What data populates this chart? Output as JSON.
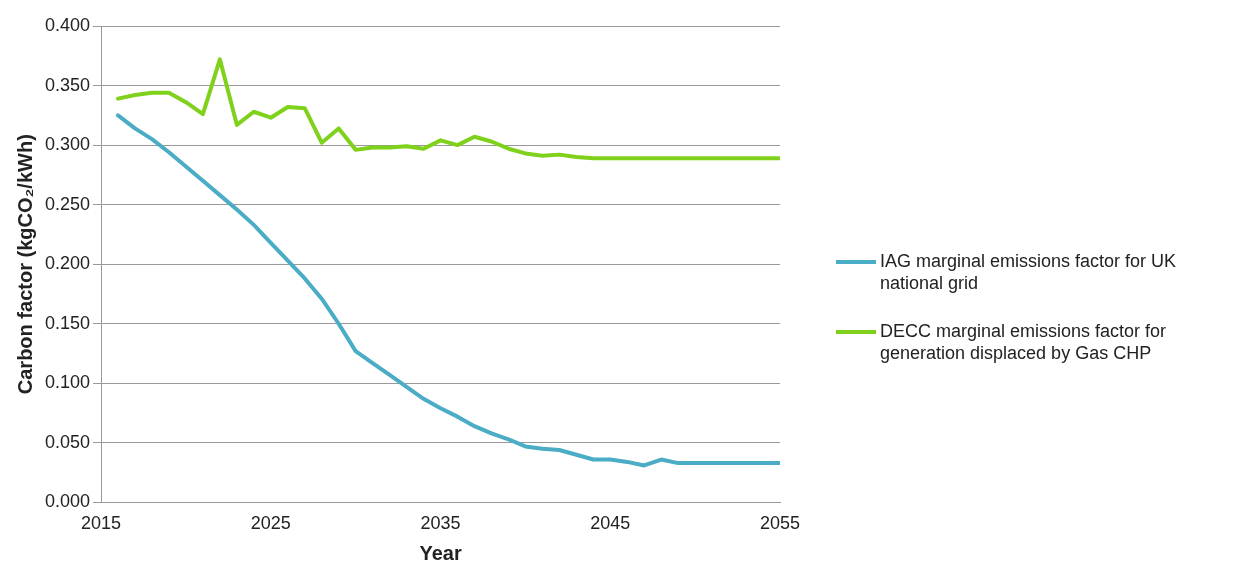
{
  "chart_data": {
    "type": "line",
    "xlabel": "Year",
    "ylabel": "Carbon factor (kgCO₂/kWh)",
    "x": [
      2016,
      2017,
      2018,
      2019,
      2020,
      2021,
      2022,
      2023,
      2024,
      2025,
      2026,
      2027,
      2028,
      2029,
      2030,
      2031,
      2032,
      2033,
      2034,
      2035,
      2036,
      2037,
      2038,
      2039,
      2040,
      2041,
      2042,
      2043,
      2044,
      2045,
      2046,
      2047,
      2048,
      2049,
      2050,
      2051,
      2052,
      2053,
      2054,
      2055
    ],
    "series": [
      {
        "name": "IAG marginal emissions factor for UK national grid",
        "color": "#4bacc6",
        "values": [
          0.325,
          0.314,
          0.305,
          0.294,
          0.282,
          0.27,
          0.258,
          0.246,
          0.233,
          0.218,
          0.203,
          0.188,
          0.171,
          0.15,
          0.127,
          0.117,
          0.107,
          0.097,
          0.087,
          0.079,
          0.072,
          0.064,
          0.058,
          0.053,
          0.047,
          0.045,
          0.044,
          0.04,
          0.036,
          0.036,
          0.034,
          0.031,
          0.036,
          0.033,
          0.033,
          0.033,
          0.033,
          0.033,
          0.033,
          0.033
        ]
      },
      {
        "name": "DECC marginal emissions factor for generation displaced by Gas CHP",
        "color": "#7fd11b",
        "values": [
          0.339,
          0.342,
          0.344,
          0.344,
          0.336,
          0.326,
          0.372,
          0.317,
          0.328,
          0.323,
          0.332,
          0.331,
          0.302,
          0.314,
          0.296,
          0.298,
          0.298,
          0.299,
          0.297,
          0.304,
          0.3,
          0.307,
          0.303,
          0.297,
          0.293,
          0.291,
          0.292,
          0.29,
          0.289,
          0.289,
          0.289,
          0.289,
          0.289,
          0.289,
          0.289,
          0.289,
          0.289,
          0.289,
          0.289,
          0.289
        ]
      }
    ],
    "xlim": [
      2015,
      2055
    ],
    "xticks": [
      2015,
      2025,
      2035,
      2045,
      2055
    ],
    "ylim": [
      0,
      0.4
    ],
    "yticks": [
      {
        "value": 0,
        "label": "0.000"
      },
      {
        "value": 0.05,
        "label": "0.050"
      },
      {
        "value": 0.1,
        "label": "0.100"
      },
      {
        "value": 0.15,
        "label": "0.150"
      },
      {
        "value": 0.2,
        "label": "0.200"
      },
      {
        "value": 0.25,
        "label": "0.250"
      },
      {
        "value": 0.3,
        "label": "0.300"
      },
      {
        "value": 0.35,
        "label": "0.350"
      },
      {
        "value": 0.4,
        "label": "0.400"
      }
    ],
    "grid": "y",
    "legend": "right",
    "marker": "none",
    "line_style": "solid"
  }
}
